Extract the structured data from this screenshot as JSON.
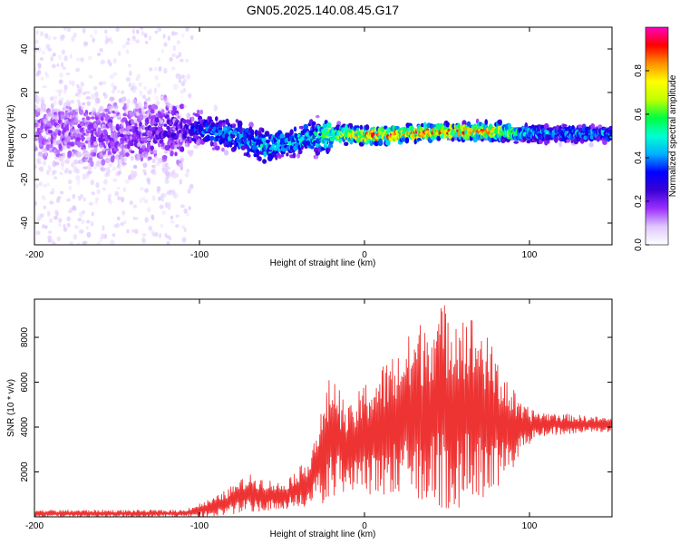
{
  "title": "GN05.2025.140.08.45.G17",
  "colors": {
    "snr_line": "#ee3333",
    "axis": "#000000",
    "background": "#ffffff"
  },
  "chart_data": [
    {
      "type": "heatmap",
      "xlabel": "Height of straight line (km)",
      "ylabel": "Frequency (Hz)",
      "xlim": [
        -200,
        150
      ],
      "ylim": [
        -50,
        50
      ],
      "xticks": [
        "-200",
        "-100",
        "0",
        "100"
      ],
      "yticks": [
        "-40",
        "-20",
        "0",
        "20",
        "40"
      ],
      "colorbar": {
        "label": "Normalized spectral amplitude",
        "range": [
          0,
          1
        ],
        "ticks": [
          "0.0",
          "0.2",
          "0.4",
          "0.6",
          "0.8"
        ],
        "colormap": [
          "#ffffff",
          "#e0c8ff",
          "#9b30ff",
          "#3a00d6",
          "#0000ff",
          "#00b0ff",
          "#00ffd0",
          "#00ff40",
          "#c0ff00",
          "#ffff00",
          "#ff9000",
          "#ff0000",
          "#ff00c0"
        ]
      },
      "ridge": [
        {
          "x": -200,
          "freq": 2,
          "amp": 0.15
        },
        {
          "x": -150,
          "freq": 1,
          "amp": 0.18
        },
        {
          "x": -110,
          "freq": 2,
          "amp": 0.22
        },
        {
          "x": -100,
          "freq": 3,
          "amp": 0.35
        },
        {
          "x": -80,
          "freq": 0,
          "amp": 0.4
        },
        {
          "x": -60,
          "freq": -5,
          "amp": 0.45
        },
        {
          "x": -50,
          "freq": -3,
          "amp": 0.4
        },
        {
          "x": -30,
          "freq": 0,
          "amp": 0.5
        },
        {
          "x": -10,
          "freq": 1,
          "amp": 0.75
        },
        {
          "x": 0,
          "freq": 0,
          "amp": 0.8
        },
        {
          "x": 20,
          "freq": 1,
          "amp": 0.85
        },
        {
          "x": 50,
          "freq": 2,
          "amp": 0.8
        },
        {
          "x": 80,
          "freq": 2,
          "amp": 0.75
        },
        {
          "x": 100,
          "freq": 1,
          "amp": 0.45
        },
        {
          "x": 150,
          "freq": 1,
          "amp": 0.4
        }
      ]
    },
    {
      "type": "line",
      "xlabel": "Height of straight line (km)",
      "ylabel": "SNR (10 * v/v)",
      "xlim": [
        -200,
        150
      ],
      "ylim": [
        0,
        9700
      ],
      "xticks": [
        "-200",
        "-100",
        "0",
        "100"
      ],
      "yticks": [
        "2000",
        "4000",
        "6000",
        "8000"
      ],
      "envelope": [
        {
          "x": -200,
          "low": 0,
          "high": 300
        },
        {
          "x": -110,
          "low": 0,
          "high": 300
        },
        {
          "x": -90,
          "low": 0,
          "high": 900
        },
        {
          "x": -70,
          "low": 200,
          "high": 1900
        },
        {
          "x": -50,
          "low": 300,
          "high": 1500
        },
        {
          "x": -35,
          "low": 400,
          "high": 2500
        },
        {
          "x": -25,
          "low": 600,
          "high": 5000
        },
        {
          "x": -20,
          "low": 800,
          "high": 6600
        },
        {
          "x": -10,
          "low": 1200,
          "high": 4800
        },
        {
          "x": 0,
          "low": 1000,
          "high": 6000
        },
        {
          "x": 20,
          "low": 800,
          "high": 7500
        },
        {
          "x": 40,
          "low": 500,
          "high": 9300
        },
        {
          "x": 55,
          "low": 300,
          "high": 9700
        },
        {
          "x": 70,
          "low": 800,
          "high": 8700
        },
        {
          "x": 85,
          "low": 1500,
          "high": 6500
        },
        {
          "x": 95,
          "low": 2800,
          "high": 5000
        },
        {
          "x": 105,
          "low": 3600,
          "high": 4700
        },
        {
          "x": 150,
          "low": 3800,
          "high": 4400
        }
      ],
      "series_color": "#ee3333"
    }
  ]
}
